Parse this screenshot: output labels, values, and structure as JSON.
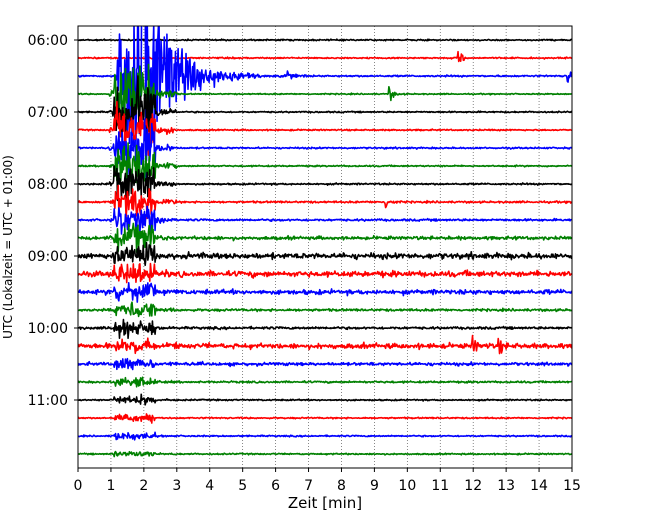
{
  "chart_data": {
    "type": "line",
    "title": "",
    "xlabel": "Zeit  [min]",
    "ylabel": "UTC (Lokalzeit = UTC + 01:00)",
    "xlim": [
      0,
      15
    ],
    "xticks": [
      0,
      1,
      2,
      3,
      4,
      5,
      6,
      7,
      8,
      9,
      10,
      11,
      12,
      13,
      14,
      15
    ],
    "yticks": [
      "06:00",
      "07:00",
      "08:00",
      "09:00",
      "10:00",
      "11:00"
    ],
    "grid": "vertical dotted at each minute",
    "trace_colors": [
      "#000000",
      "#ff0000",
      "#0000ff",
      "#008000"
    ],
    "traces_start": "06:00",
    "trace_interval_min": 15,
    "trace_count": 24,
    "background_noise": [
      0.6,
      0.6,
      0.7,
      0.5,
      0.6,
      0.6,
      0.7,
      0.6,
      0.7,
      0.8,
      0.9,
      1.2,
      2.0,
      2.0,
      1.6,
      1.0,
      1.0,
      1.8,
      1.1,
      0.8,
      0.6,
      0.6,
      0.6,
      0.6
    ],
    "events": [
      {
        "trace": 1,
        "minute": 11.55,
        "amplitude": 8
      },
      {
        "trace": 2,
        "minute": 14.9,
        "amplitude": 9
      },
      {
        "trace": 2,
        "minute": 6.4,
        "amplitude": 4
      },
      {
        "trace": 3,
        "minute": 9.45,
        "amplitude": 7
      },
      {
        "trace": 9,
        "minute": 9.35,
        "amplitude": 6
      },
      {
        "trace": 17,
        "minute": 12.0,
        "amplitude": 6
      },
      {
        "trace": 17,
        "minute": 12.8,
        "amplitude": 5
      }
    ],
    "earthquake": {
      "trace": 2,
      "onset_minute": 1.15,
      "peak_minute": 1.9,
      "coda_end_minute": 7
    }
  }
}
